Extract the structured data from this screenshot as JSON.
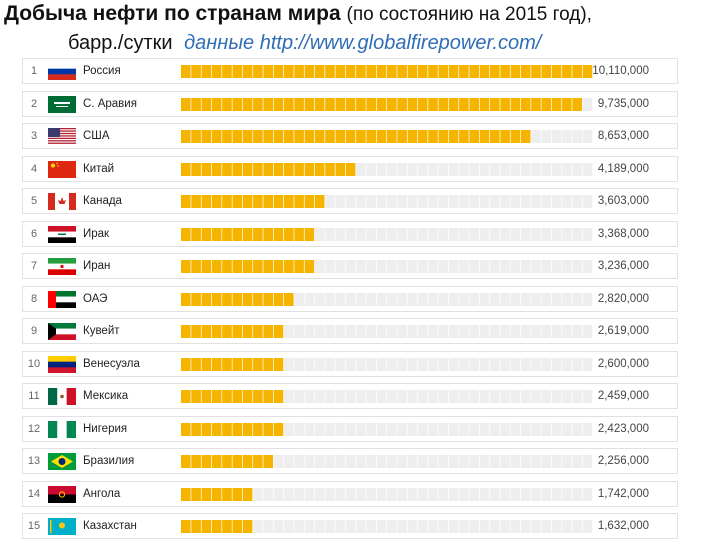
{
  "header": {
    "title_main": "Добыча нефти по странам мира",
    "title_sub": "(по состоянию на 2015 год),",
    "unit": "барр./сутки",
    "source": "данные http://www.globalfirepower.com/"
  },
  "colors": {
    "bar_filled": "#f4b400",
    "bar_empty": "#eeeeee",
    "row_border": "#e1e1e1",
    "source_link": "#2f6db5"
  },
  "chart_data": {
    "type": "bar",
    "orientation": "horizontal",
    "title": "Добыча нефти по странам мира (по состоянию на 2015 год), барр./сутки",
    "ylabel": "барр./сутки",
    "xlim": [
      0,
      10110000
    ],
    "categories": [
      "Россия",
      "С. Аравия",
      "США",
      "Китай",
      "Канада",
      "Ирак",
      "Иран",
      "ОАЭ",
      "Кувейт",
      "Венесуэла",
      "Мексика",
      "Нигерия",
      "Бразилия",
      "Ангола",
      "Казахстан"
    ],
    "ranks": [
      "1",
      "2",
      "3",
      "4",
      "5",
      "6",
      "7",
      "8",
      "9",
      "10",
      "11",
      "12",
      "13",
      "14",
      "15"
    ],
    "values": [
      10110000,
      9735000,
      8653000,
      4189000,
      3603000,
      3368000,
      3236000,
      2820000,
      2619000,
      2600000,
      2459000,
      2423000,
      2256000,
      1742000,
      1632000
    ],
    "value_labels": [
      "10,110,000",
      "9,735,000",
      "8,653,000",
      "4,189,000",
      "3,603,000",
      "3,368,000",
      "3,236,000",
      "2,820,000",
      "2,619,000",
      "2,600,000",
      "2,459,000",
      "2,423,000",
      "2,256,000",
      "1,742,000",
      "1,632,000"
    ],
    "flags": [
      "russia-flag-icon",
      "saudi-arabia-flag-icon",
      "usa-flag-icon",
      "china-flag-icon",
      "canada-flag-icon",
      "iraq-flag-icon",
      "iran-flag-icon",
      "uae-flag-icon",
      "kuwait-flag-icon",
      "venezuela-flag-icon",
      "mexico-flag-icon",
      "nigeria-flag-icon",
      "brazil-flag-icon",
      "angola-flag-icon",
      "kazakhstan-flag-icon"
    ]
  }
}
